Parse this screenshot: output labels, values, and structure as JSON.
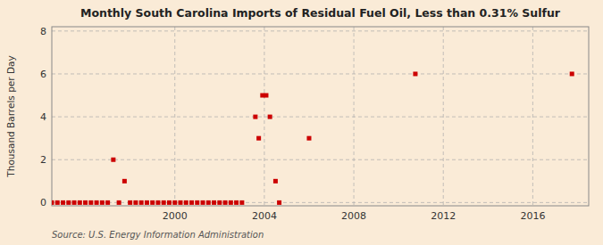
{
  "chart_data": {
    "type": "scatter",
    "title": "Monthly South Carolina Imports of Residual Fuel Oil, Less than 0.31% Sulfur",
    "ylabel": "Thousand Barrels per Day",
    "annotations": [
      "Source: U.S. Energy Information Administration"
    ],
    "x": [
      1997.25,
      1997.75,
      1994.5,
      1994.75,
      1995.0,
      1995.25,
      1995.5,
      1995.75,
      1996.0,
      1996.25,
      1996.5,
      1996.75,
      1997.0,
      1997.5,
      1998.0,
      1998.25,
      1998.5,
      1998.75,
      1999.0,
      1999.25,
      1999.5,
      1999.75,
      2000.0,
      2000.25,
      2000.5,
      2000.75,
      2001.0,
      2001.25,
      2001.5,
      2001.75,
      2002.0,
      2002.25,
      2002.5,
      2002.75,
      2003.0,
      2003.6,
      2003.75,
      2003.917,
      2004.083,
      2004.25,
      2004.5,
      2004.667,
      2006.0,
      2010.75,
      2017.75
    ],
    "values": [
      2.0,
      1.0,
      0.0,
      0.0,
      0.0,
      0.0,
      0.0,
      0.0,
      0.0,
      0.0,
      0.0,
      0.0,
      0.0,
      0.0,
      0.0,
      0.0,
      0.0,
      0.0,
      0.0,
      0.0,
      0.0,
      0.0,
      0.0,
      0.0,
      0.0,
      0.0,
      0.0,
      0.0,
      0.0,
      0.0,
      0.0,
      0.0,
      0.0,
      0.0,
      0.0,
      4.0,
      3.0,
      5.0,
      5.0,
      4.0,
      1.0,
      0.0,
      3.0,
      6.0,
      6.0
    ],
    "color": "#cc0000",
    "marker": "square",
    "xlim": [
      1994.5,
      2018.5
    ],
    "ylim": [
      -0.15,
      8.2
    ],
    "xticks": [
      2000,
      2004,
      2008,
      2012,
      2016
    ],
    "yticks": [
      0,
      2,
      4,
      6,
      8
    ],
    "grid": true
  }
}
